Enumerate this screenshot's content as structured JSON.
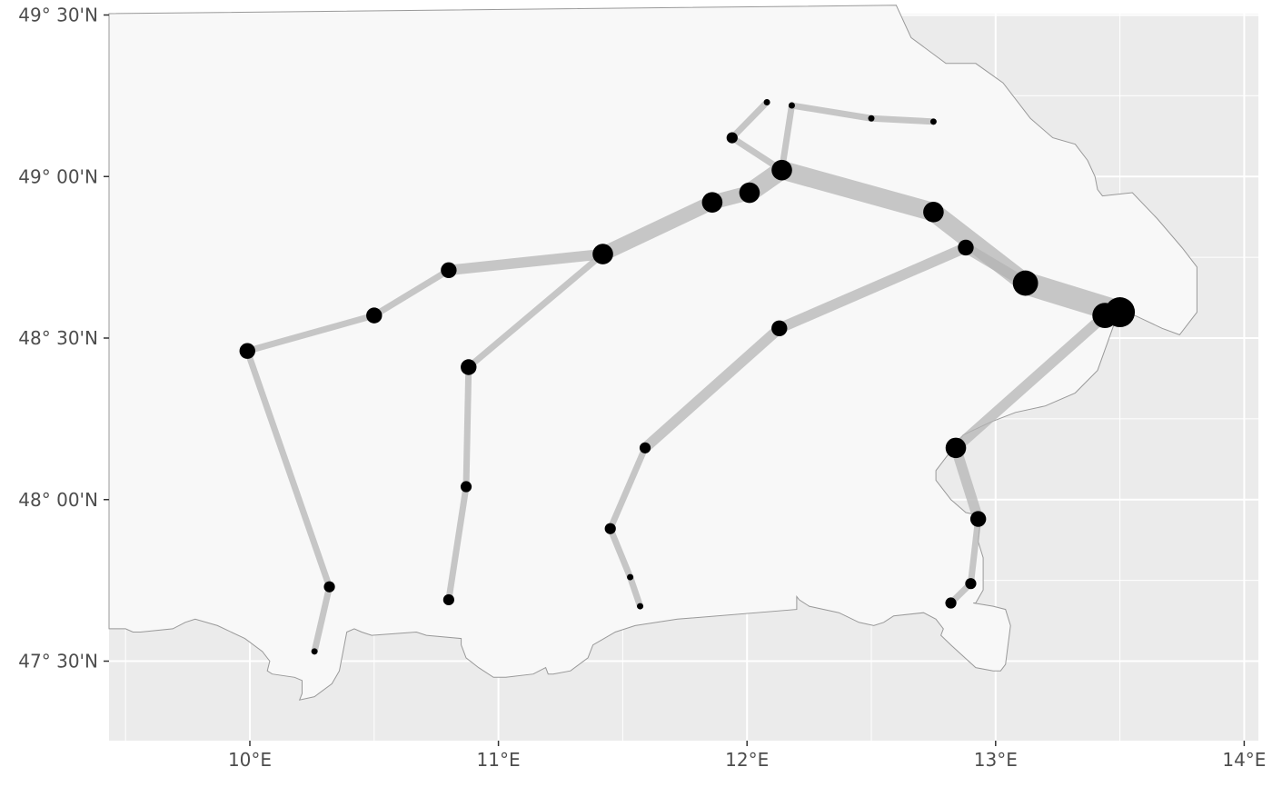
{
  "map": {
    "x_ticks": [
      "10°E",
      "11°E",
      "12°E",
      "13°E",
      "14°E"
    ],
    "y_ticks": [
      "49° 30'N",
      "49° 00'N",
      "48° 30'N",
      "48° 00'N",
      "47° 30'N"
    ],
    "colors": {
      "panel_background": "#ebebeb",
      "land_fill": "#f8f8f8",
      "border_stroke": "#999999",
      "gridline": "#ffffff",
      "route_line": "#b3b3b3",
      "point": "#000000"
    }
  },
  "chart_data": {
    "type": "map",
    "projection": "geographic (lon/lat)",
    "xlim": [
      9.45,
      14.08
    ],
    "ylim": [
      47.24,
      49.53
    ],
    "x_tick_values": [
      10,
      11,
      12,
      13,
      14
    ],
    "y_tick_values": [
      49.5,
      49.0,
      48.5,
      48.0,
      47.5
    ],
    "grid": true,
    "land_outline": [
      [
        12.6,
        49.53
      ],
      [
        12.66,
        49.43
      ],
      [
        12.8,
        49.35
      ],
      [
        12.92,
        49.35
      ],
      [
        13.03,
        49.29
      ],
      [
        13.14,
        49.18
      ],
      [
        13.23,
        49.12
      ],
      [
        13.32,
        49.1
      ],
      [
        13.37,
        49.05
      ],
      [
        13.4,
        49.0
      ],
      [
        13.41,
        48.96
      ],
      [
        13.43,
        48.94
      ],
      [
        13.55,
        48.95
      ],
      [
        13.65,
        48.87
      ],
      [
        13.75,
        48.78
      ],
      [
        13.81,
        48.72
      ],
      [
        13.81,
        48.58
      ],
      [
        13.74,
        48.51
      ],
      [
        13.67,
        48.53
      ],
      [
        13.56,
        48.57
      ],
      [
        13.48,
        48.55
      ],
      [
        13.41,
        48.4
      ],
      [
        13.32,
        48.33
      ],
      [
        13.2,
        48.29
      ],
      [
        13.08,
        48.27
      ],
      [
        12.98,
        48.24
      ],
      [
        12.87,
        48.2
      ],
      [
        12.79,
        48.12
      ],
      [
        12.76,
        48.09
      ],
      [
        12.76,
        48.06
      ],
      [
        12.82,
        48.0
      ],
      [
        12.88,
        47.96
      ],
      [
        12.94,
        47.95
      ],
      [
        12.93,
        47.87
      ],
      [
        12.95,
        47.82
      ],
      [
        12.95,
        47.72
      ],
      [
        12.92,
        47.68
      ],
      [
        12.91,
        47.68
      ],
      [
        12.99,
        47.67
      ],
      [
        13.04,
        47.66
      ],
      [
        13.06,
        47.61
      ],
      [
        13.04,
        47.49
      ],
      [
        13.02,
        47.47
      ],
      [
        12.99,
        47.47
      ],
      [
        12.92,
        47.48
      ],
      [
        12.82,
        47.55
      ],
      [
        12.78,
        47.58
      ],
      [
        12.79,
        47.6
      ],
      [
        12.76,
        47.63
      ],
      [
        12.71,
        47.65
      ],
      [
        12.59,
        47.64
      ],
      [
        12.55,
        47.62
      ],
      [
        12.51,
        47.61
      ],
      [
        12.45,
        47.62
      ],
      [
        12.37,
        47.65
      ],
      [
        12.25,
        47.67
      ],
      [
        12.21,
        47.69
      ],
      [
        12.2,
        47.7
      ],
      [
        12.2,
        47.66
      ],
      [
        11.72,
        47.63
      ],
      [
        11.55,
        47.61
      ],
      [
        11.47,
        47.59
      ],
      [
        11.38,
        47.55
      ],
      [
        11.36,
        47.51
      ],
      [
        11.29,
        47.47
      ],
      [
        11.22,
        47.46
      ],
      [
        11.2,
        47.46
      ],
      [
        11.19,
        47.48
      ],
      [
        11.14,
        47.46
      ],
      [
        11.03,
        47.45
      ],
      [
        10.98,
        47.45
      ],
      [
        10.92,
        47.48
      ],
      [
        10.87,
        47.51
      ],
      [
        10.85,
        47.55
      ],
      [
        10.85,
        47.57
      ],
      [
        10.71,
        47.58
      ],
      [
        10.67,
        47.59
      ],
      [
        10.49,
        47.58
      ],
      [
        10.45,
        47.59
      ],
      [
        10.42,
        47.6
      ],
      [
        10.39,
        47.59
      ],
      [
        10.36,
        47.47
      ],
      [
        10.33,
        47.43
      ],
      [
        10.26,
        47.39
      ],
      [
        10.2,
        47.38
      ],
      [
        10.21,
        47.4
      ],
      [
        10.21,
        47.44
      ],
      [
        10.18,
        47.45
      ],
      [
        10.09,
        47.46
      ],
      [
        10.07,
        47.47
      ],
      [
        10.08,
        47.5
      ],
      [
        10.05,
        47.53
      ],
      [
        9.98,
        47.57
      ],
      [
        9.87,
        47.61
      ],
      [
        9.78,
        47.63
      ],
      [
        9.74,
        47.62
      ],
      [
        9.69,
        47.6
      ],
      [
        9.56,
        47.59
      ],
      [
        9.53,
        47.59
      ],
      [
        9.5,
        47.6
      ]
    ],
    "routes": [
      {
        "points": [
          [
            10.26,
            47.53
          ],
          [
            10.32,
            47.73
          ],
          [
            9.99,
            48.46
          ],
          [
            10.5,
            48.57
          ],
          [
            10.8,
            48.71
          ],
          [
            11.42,
            48.76
          ],
          [
            11.86,
            48.92
          ],
          [
            12.01,
            48.95
          ],
          [
            12.14,
            49.02
          ],
          [
            12.75,
            48.89
          ],
          [
            13.12,
            48.67
          ],
          [
            13.5,
            48.58
          ]
        ],
        "width": [
          1,
          1,
          1,
          1,
          2,
          3,
          3,
          4,
          4,
          4,
          5
        ]
      },
      {
        "points": [
          [
            10.8,
            47.69
          ],
          [
            10.87,
            48.04
          ],
          [
            10.88,
            48.41
          ],
          [
            11.42,
            48.76
          ]
        ],
        "width": [
          1,
          1,
          1
        ]
      },
      {
        "points": [
          [
            11.57,
            47.67
          ],
          [
            11.53,
            47.76
          ],
          [
            11.45,
            47.91
          ],
          [
            11.59,
            48.16
          ],
          [
            12.13,
            48.53
          ],
          [
            12.88,
            48.78
          ],
          [
            13.12,
            48.67
          ]
        ],
        "width": [
          1,
          1,
          1,
          2,
          2,
          2
        ]
      },
      {
        "points": [
          [
            12.08,
            49.23
          ],
          [
            11.94,
            49.12
          ],
          [
            12.14,
            49.02
          ]
        ],
        "width": [
          1,
          1
        ]
      },
      {
        "points": [
          [
            12.75,
            49.17
          ],
          [
            12.5,
            49.18
          ],
          [
            12.18,
            49.22
          ],
          [
            12.14,
            49.02
          ]
        ],
        "width": [
          1,
          1,
          1
        ]
      },
      {
        "points": [
          [
            12.82,
            47.68
          ],
          [
            12.9,
            47.74
          ],
          [
            12.93,
            47.94
          ],
          [
            12.84,
            48.16
          ],
          [
            13.44,
            48.57
          ]
        ],
        "width": [
          1,
          1,
          2,
          2
        ]
      }
    ],
    "points": [
      {
        "lon": 10.26,
        "lat": 47.53,
        "size": 1
      },
      {
        "lon": 10.32,
        "lat": 47.73,
        "size": 2
      },
      {
        "lon": 9.99,
        "lat": 48.46,
        "size": 3
      },
      {
        "lon": 10.5,
        "lat": 48.57,
        "size": 3
      },
      {
        "lon": 10.8,
        "lat": 48.71,
        "size": 3
      },
      {
        "lon": 11.42,
        "lat": 48.76,
        "size": 4
      },
      {
        "lon": 11.86,
        "lat": 48.92,
        "size": 4
      },
      {
        "lon": 12.01,
        "lat": 48.95,
        "size": 4
      },
      {
        "lon": 12.14,
        "lat": 49.02,
        "size": 4
      },
      {
        "lon": 12.75,
        "lat": 48.89,
        "size": 4
      },
      {
        "lon": 12.88,
        "lat": 48.78,
        "size": 3
      },
      {
        "lon": 13.12,
        "lat": 48.67,
        "size": 5
      },
      {
        "lon": 13.44,
        "lat": 48.57,
        "size": 5
      },
      {
        "lon": 13.5,
        "lat": 48.58,
        "size": 6
      },
      {
        "lon": 10.8,
        "lat": 47.69,
        "size": 2
      },
      {
        "lon": 10.87,
        "lat": 48.04,
        "size": 2
      },
      {
        "lon": 10.88,
        "lat": 48.41,
        "size": 3
      },
      {
        "lon": 11.57,
        "lat": 47.67,
        "size": 1
      },
      {
        "lon": 11.53,
        "lat": 47.76,
        "size": 1
      },
      {
        "lon": 11.45,
        "lat": 47.91,
        "size": 2
      },
      {
        "lon": 11.59,
        "lat": 48.16,
        "size": 2
      },
      {
        "lon": 12.13,
        "lat": 48.53,
        "size": 3
      },
      {
        "lon": 12.08,
        "lat": 49.23,
        "size": 1
      },
      {
        "lon": 12.18,
        "lat": 49.22,
        "size": 1
      },
      {
        "lon": 12.5,
        "lat": 49.18,
        "size": 1
      },
      {
        "lon": 12.75,
        "lat": 49.17,
        "size": 1
      },
      {
        "lon": 11.94,
        "lat": 49.12,
        "size": 2
      },
      {
        "lon": 12.84,
        "lat": 48.16,
        "size": 4
      },
      {
        "lon": 12.93,
        "lat": 47.94,
        "size": 3
      },
      {
        "lon": 12.9,
        "lat": 47.74,
        "size": 2
      },
      {
        "lon": 12.82,
        "lat": 47.68,
        "size": 2
      }
    ]
  }
}
